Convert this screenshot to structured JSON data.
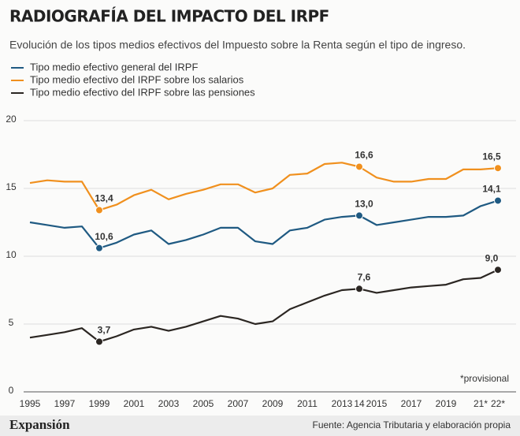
{
  "chart_data": {
    "type": "line",
    "title": "RADIOGRAFÍA DEL IMPACTO DEL IRPF",
    "subtitle": "Evolución de los tipos medios efectivos del Impuesto sobre la Renta según el tipo de ingreso.",
    "categories": [
      "1995",
      null,
      "1997",
      null,
      "1999",
      null,
      "2001",
      null,
      "2003",
      null,
      "2005",
      null,
      "2007",
      null,
      "2009",
      null,
      "2011",
      null,
      "2013",
      "14",
      "2015",
      null,
      "2017",
      null,
      "2019",
      null,
      "21*",
      "22*"
    ],
    "series": [
      {
        "name": "Tipo medio efectivo general del IRPF",
        "color": "#1f5a82",
        "values": [
          12.5,
          12.3,
          12.1,
          12.2,
          10.6,
          11.0,
          11.6,
          11.9,
          10.9,
          11.2,
          11.6,
          12.1,
          12.1,
          11.1,
          10.9,
          11.9,
          12.1,
          12.7,
          12.9,
          13.0,
          12.3,
          12.5,
          12.7,
          12.9,
          12.9,
          13.0,
          13.7,
          14.1
        ],
        "value_labels": [
          null,
          null,
          null,
          null,
          "10,6",
          null,
          null,
          null,
          null,
          null,
          null,
          null,
          null,
          null,
          null,
          null,
          null,
          null,
          null,
          "13,0",
          null,
          null,
          null,
          null,
          null,
          null,
          null,
          "14,1"
        ]
      },
      {
        "name": "Tipo medio efectivo del IRPF sobre los salarios",
        "color": "#f0901e",
        "values": [
          15.4,
          15.6,
          15.5,
          15.5,
          13.4,
          13.8,
          14.5,
          14.9,
          14.2,
          14.6,
          14.9,
          15.3,
          15.3,
          14.7,
          15.0,
          16.0,
          16.1,
          16.8,
          16.9,
          16.6,
          15.8,
          15.5,
          15.5,
          15.7,
          15.7,
          16.4,
          16.4,
          16.5
        ],
        "value_labels": [
          null,
          null,
          null,
          null,
          "13,4",
          null,
          null,
          null,
          null,
          null,
          null,
          null,
          null,
          null,
          null,
          null,
          null,
          null,
          null,
          "16,6",
          null,
          null,
          null,
          null,
          null,
          null,
          null,
          "16,5"
        ]
      },
      {
        "name": "Tipo medio efectivo del IRPF sobre las pensiones",
        "color": "#2b2622",
        "values": [
          4.0,
          4.2,
          4.4,
          4.7,
          3.7,
          4.1,
          4.6,
          4.8,
          4.5,
          4.8,
          5.2,
          5.6,
          5.4,
          5.0,
          5.2,
          6.1,
          6.6,
          7.1,
          7.5,
          7.6,
          7.3,
          7.5,
          7.7,
          7.8,
          7.9,
          8.3,
          8.4,
          9.0
        ],
        "value_labels": [
          null,
          null,
          null,
          null,
          "3,7",
          null,
          null,
          null,
          null,
          null,
          null,
          null,
          null,
          null,
          null,
          null,
          null,
          null,
          null,
          "7,6",
          null,
          null,
          null,
          null,
          null,
          null,
          null,
          "9,0"
        ]
      }
    ],
    "ylim": [
      0,
      20
    ],
    "yticks": [
      0,
      5,
      10,
      15,
      20
    ],
    "grid": true,
    "note": "*provisional",
    "brand": "Expansión",
    "source": "Fuente: Agencia Tributaria y elaboración propia"
  }
}
